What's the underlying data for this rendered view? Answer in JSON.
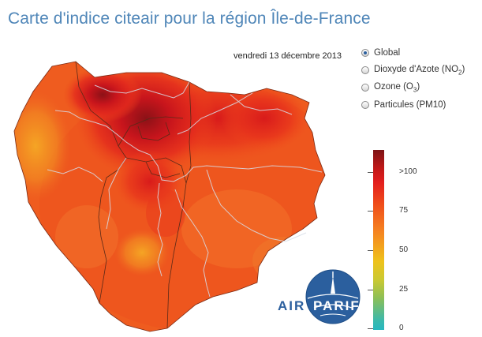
{
  "title": "Carte d'indice citeair pour la région Île-de-France",
  "date": "vendredi 13 décembre 2013",
  "pollutants": [
    {
      "label": "Global",
      "selected": true
    },
    {
      "label": "Dioxyde d'Azote (NO",
      "sub": "2",
      "suffix": ")",
      "selected": false
    },
    {
      "label": "Ozone (O",
      "sub": "3",
      "suffix": ")",
      "selected": false
    },
    {
      "label": "Particules (PM10)",
      "selected": false
    }
  ],
  "scale": {
    "ticks": [
      ">100",
      "75",
      "50",
      "25",
      "0"
    ]
  },
  "logo": {
    "part1": "AIR",
    "part2": "PARIF"
  },
  "colors": {
    "title": "#4f86b8",
    "index_high": "#b3141b",
    "index_mid": "#ef4c1a",
    "index_base": "#f06a21",
    "index_low": "#f5a623",
    "logo_blue": "#2b5f9e"
  }
}
